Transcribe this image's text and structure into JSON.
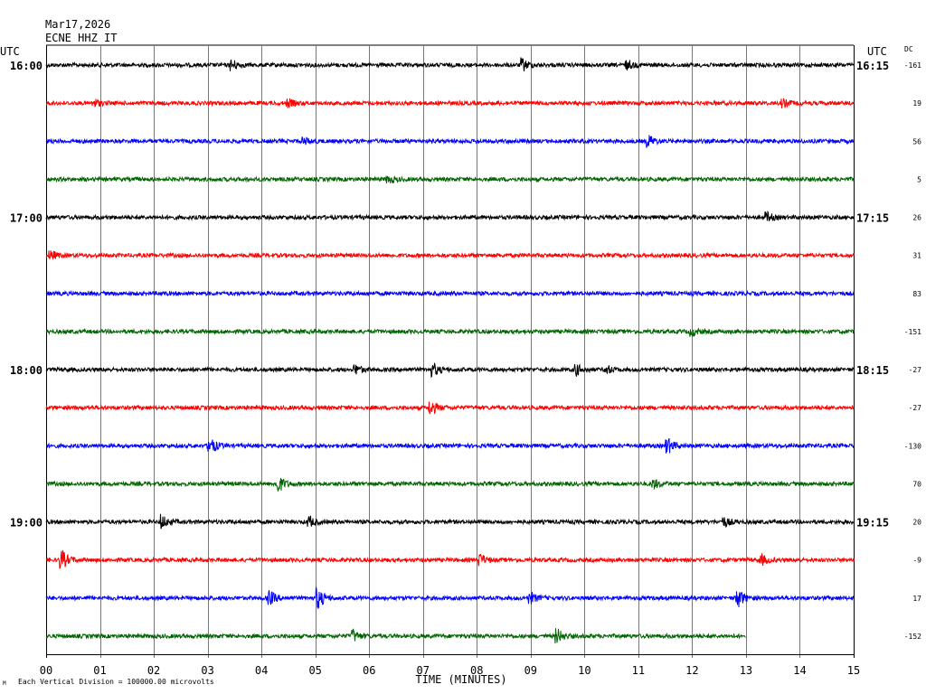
{
  "header": {
    "date": "Mar17,2026",
    "station": "ECNE HHZ IT"
  },
  "chart_data": {
    "type": "line",
    "title": "",
    "left_axis_label": "UTC",
    "right_axis_label": "UTC",
    "dc_label": "DC",
    "xlabel": "TIME (MINUTES)",
    "x_ticks": [
      "00",
      "01",
      "02",
      "03",
      "04",
      "05",
      "06",
      "07",
      "08",
      "09",
      "10",
      "11",
      "12",
      "13",
      "14",
      "15"
    ],
    "xlim": [
      0,
      15
    ],
    "footer_note": "Each Vertical Division = 100000.00 microvolts",
    "trace_colors": [
      "#000000",
      "#ff0000",
      "#0000ff",
      "#006400"
    ],
    "left_time_labels": [
      {
        "row": 0,
        "text": "16:00"
      },
      {
        "row": 4,
        "text": "17:00"
      },
      {
        "row": 8,
        "text": "18:00"
      },
      {
        "row": 12,
        "text": "19:00"
      }
    ],
    "right_time_labels": [
      {
        "row": 0,
        "text": "16:15"
      },
      {
        "row": 4,
        "text": "17:15"
      },
      {
        "row": 8,
        "text": "18:15"
      },
      {
        "row": 12,
        "text": "19:15"
      }
    ],
    "dc_offsets": [
      "-161",
      "19",
      "56",
      "5",
      "26",
      "31",
      "83",
      "-151",
      "-27",
      "-27",
      "-130",
      "70",
      "20",
      "-9",
      "17",
      "-152"
    ],
    "last_row_end_minute": 13,
    "events": [
      {
        "row": 0,
        "minute": 3.45,
        "amp": 1.6
      },
      {
        "row": 0,
        "minute": 8.85,
        "amp": 2.0
      },
      {
        "row": 0,
        "minute": 10.8,
        "amp": 1.2
      },
      {
        "row": 1,
        "minute": 0.9,
        "amp": 1.3
      },
      {
        "row": 1,
        "minute": 4.5,
        "amp": 1.2
      },
      {
        "row": 1,
        "minute": 13.7,
        "amp": 1.2
      },
      {
        "row": 2,
        "minute": 11.2,
        "amp": 1.8
      },
      {
        "row": 2,
        "minute": 4.8,
        "amp": 1.1
      },
      {
        "row": 3,
        "minute": 6.35,
        "amp": 1.2
      },
      {
        "row": 4,
        "minute": 13.4,
        "amp": 1.4
      },
      {
        "row": 5,
        "minute": 0.1,
        "amp": 1.3
      },
      {
        "row": 7,
        "minute": 12.0,
        "amp": 1.2
      },
      {
        "row": 8,
        "minute": 5.75,
        "amp": 1.5
      },
      {
        "row": 8,
        "minute": 7.2,
        "amp": 1.9
      },
      {
        "row": 8,
        "minute": 9.85,
        "amp": 1.8
      },
      {
        "row": 8,
        "minute": 10.4,
        "amp": 1.4
      },
      {
        "row": 9,
        "minute": 7.15,
        "amp": 2.2
      },
      {
        "row": 10,
        "minute": 3.05,
        "amp": 2.6
      },
      {
        "row": 10,
        "minute": 11.55,
        "amp": 2.4
      },
      {
        "row": 11,
        "minute": 4.3,
        "amp": 3.2
      },
      {
        "row": 11,
        "minute": 11.3,
        "amp": 1.4
      },
      {
        "row": 12,
        "minute": 2.15,
        "amp": 2.2
      },
      {
        "row": 12,
        "minute": 4.9,
        "amp": 1.6
      },
      {
        "row": 12,
        "minute": 12.6,
        "amp": 1.4
      },
      {
        "row": 13,
        "minute": 0.3,
        "amp": 3.0
      },
      {
        "row": 13,
        "minute": 8.05,
        "amp": 2.0
      },
      {
        "row": 13,
        "minute": 13.3,
        "amp": 1.4
      },
      {
        "row": 14,
        "minute": 4.15,
        "amp": 2.4
      },
      {
        "row": 14,
        "minute": 5.05,
        "amp": 3.4
      },
      {
        "row": 14,
        "minute": 9.0,
        "amp": 1.7
      },
      {
        "row": 14,
        "minute": 12.85,
        "amp": 3.2
      },
      {
        "row": 15,
        "minute": 5.7,
        "amp": 2.0
      },
      {
        "row": 15,
        "minute": 9.5,
        "amp": 2.2
      }
    ]
  }
}
